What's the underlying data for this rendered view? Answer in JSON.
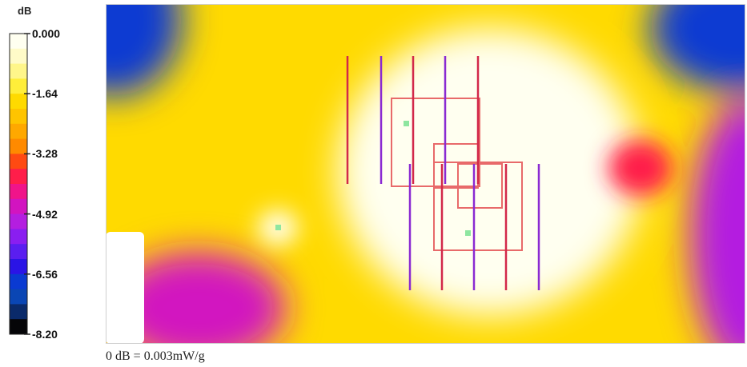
{
  "chart_data": {
    "type": "heatmap",
    "title": "",
    "subtitle": "",
    "colorbar": {
      "unit": "dB",
      "range": [
        -8.2,
        0.0
      ],
      "tick_labels": [
        "0.000",
        "-1.64",
        "-3.28",
        "-4.92",
        "-6.56",
        "-8.20"
      ],
      "tick_values": [
        0.0,
        -1.64,
        -3.28,
        -4.92,
        -6.56,
        -8.2
      ],
      "bands": [
        {
          "from": 0.0,
          "to": -0.41,
          "color": "#fffff0"
        },
        {
          "from": -0.41,
          "to": -0.82,
          "color": "#fffbc8"
        },
        {
          "from": -0.82,
          "to": -1.23,
          "color": "#fff68a"
        },
        {
          "from": -1.23,
          "to": -1.64,
          "color": "#ffee3a"
        },
        {
          "from": -1.64,
          "to": -2.05,
          "color": "#ffda00"
        },
        {
          "from": -2.05,
          "to": -2.46,
          "color": "#ffc400"
        },
        {
          "from": -2.46,
          "to": -2.87,
          "color": "#ffa800"
        },
        {
          "from": -2.87,
          "to": -3.28,
          "color": "#ff8a00"
        },
        {
          "from": -3.28,
          "to": -3.69,
          "color": "#ff4a12"
        },
        {
          "from": -3.69,
          "to": -4.1,
          "color": "#ff1e4a"
        },
        {
          "from": -4.1,
          "to": -4.51,
          "color": "#f0148a"
        },
        {
          "from": -4.51,
          "to": -4.92,
          "color": "#d214c0"
        },
        {
          "from": -4.92,
          "to": -5.33,
          "color": "#b41ee0"
        },
        {
          "from": -5.33,
          "to": -5.74,
          "color": "#8a1ef0"
        },
        {
          "from": -5.74,
          "to": -6.15,
          "color": "#5a1ef0"
        },
        {
          "from": -6.15,
          "to": -6.56,
          "color": "#2a14e6"
        },
        {
          "from": -6.56,
          "to": -6.97,
          "color": "#0a3ad2"
        },
        {
          "from": -6.97,
          "to": -7.38,
          "color": "#0a46b4"
        },
        {
          "from": -7.38,
          "to": -7.79,
          "color": "#0a2a6a"
        },
        {
          "from": -7.79,
          "to": -8.2,
          "color": "#050508"
        }
      ]
    },
    "footnote": "0 dB = 0.003mW/g",
    "regions": [
      {
        "name": "field-background",
        "value": -2.0
      },
      {
        "name": "top-left-low-region",
        "value": -6.8
      },
      {
        "name": "top-right-low-region",
        "value": -6.8
      },
      {
        "name": "right-edge-low-region",
        "value": -5.0
      },
      {
        "name": "bottom-left-low-region",
        "value": -4.8
      },
      {
        "name": "center-peak-region",
        "value": -0.2
      },
      {
        "name": "right-hotspot",
        "value": -3.9
      },
      {
        "name": "left-bump",
        "value": -0.4
      }
    ],
    "grid": false,
    "legend_position": "left"
  },
  "colors": {
    "frame": "#cfcfcf",
    "antenna_line_a": "#d2284a",
    "antenna_line_b": "#8a2ad2",
    "element_outline": "#e86a6a",
    "marker": "#8ee6a0",
    "blank_patch": "#ffffff"
  }
}
